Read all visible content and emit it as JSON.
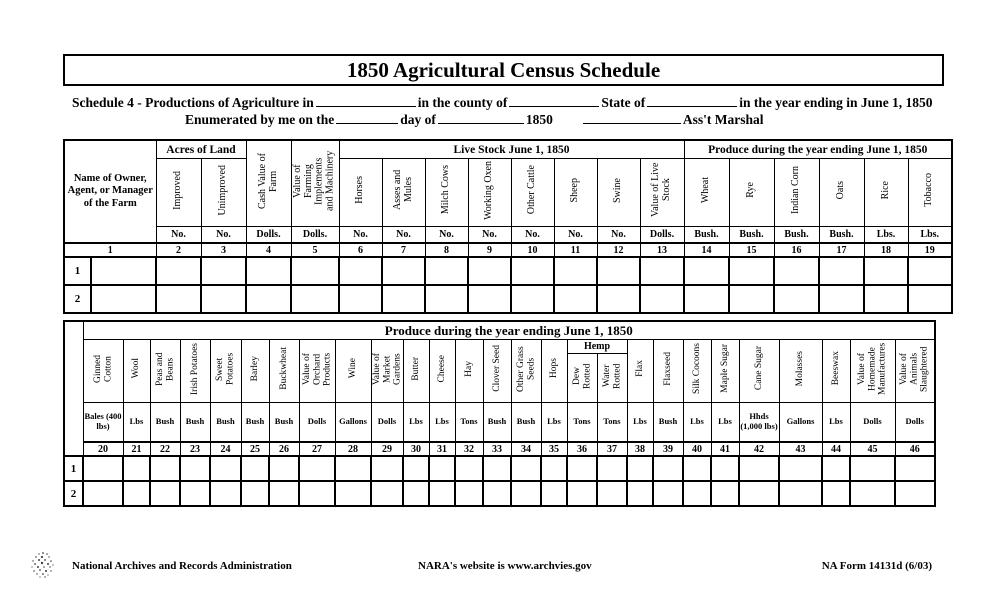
{
  "title": "1850 Agricultural Census Schedule",
  "header_lines": {
    "line1": [
      {
        "text": "Schedule 4 - Productions of Agriculture in"
      },
      {
        "blank": 100
      },
      {
        "text": "in the county of"
      },
      {
        "blank": 90
      },
      {
        "text": "State of"
      },
      {
        "blank": 90
      },
      {
        "text": "in the year ending in June 1, 1850"
      }
    ],
    "line2": [
      {
        "text": "Enumerated by me on the"
      },
      {
        "blank": 62
      },
      {
        "text": "day of"
      },
      {
        "blank": 86
      },
      {
        "text": "1850"
      },
      {
        "gap": 28
      },
      {
        "blank": 98
      },
      {
        "text": "Ass't Marshal"
      }
    ]
  },
  "table1": {
    "name_header": "Name of Owner, Agent, or Manager of the Farm",
    "name_colnum": "1",
    "groups": {
      "acres": "Acres of Land",
      "livestock": "Live Stock June 1, 1850",
      "produce": "Produce during the year ending June 1, 1850"
    },
    "columns": [
      {
        "label": "Improved",
        "unit": "No.",
        "num": "2",
        "group": "acres"
      },
      {
        "label": "Unimproved",
        "unit": "No.",
        "num": "3",
        "group": "acres"
      },
      {
        "label": "Cash Value of Farm",
        "unit": "Dolls.",
        "num": "4",
        "group": ""
      },
      {
        "label": "Value of Farming Implements and Machinery",
        "unit": "Dolls.",
        "num": "5",
        "group": ""
      },
      {
        "label": "Horses",
        "unit": "No.",
        "num": "6",
        "group": "livestock"
      },
      {
        "label": "Asses and Mules",
        "unit": "No.",
        "num": "7",
        "group": "livestock"
      },
      {
        "label": "Milch Cows",
        "unit": "No.",
        "num": "8",
        "group": "livestock"
      },
      {
        "label": "Working Oxen",
        "unit": "No.",
        "num": "9",
        "group": "livestock"
      },
      {
        "label": "Other Cattle",
        "unit": "No.",
        "num": "10",
        "group": "livestock"
      },
      {
        "label": "Sheep",
        "unit": "No.",
        "num": "11",
        "group": "livestock"
      },
      {
        "label": "Swine",
        "unit": "No.",
        "num": "12",
        "group": "livestock"
      },
      {
        "label": "Value of Live Stock",
        "unit": "Dolls.",
        "num": "13",
        "group": "livestock"
      },
      {
        "label": "Wheat",
        "unit": "Bush.",
        "num": "14",
        "group": "produce"
      },
      {
        "label": "Rye",
        "unit": "Bush.",
        "num": "15",
        "group": "produce"
      },
      {
        "label": "Indian Corn",
        "unit": "Bush.",
        "num": "16",
        "group": "produce"
      },
      {
        "label": "Oats",
        "unit": "Bush.",
        "num": "17",
        "group": "produce"
      },
      {
        "label": "Rice",
        "unit": "Lbs.",
        "num": "18",
        "group": "produce"
      },
      {
        "label": "Tobacco",
        "unit": "Lbs.",
        "num": "19",
        "group": "produce"
      }
    ],
    "rows": [
      "1",
      "2"
    ]
  },
  "table2": {
    "title": "Produce during the year ending June 1, 1850",
    "hemp_group": "Hemp",
    "columns": [
      {
        "label": "Ginned Cotton",
        "unit": "Bales (400 lbs)",
        "num": "20",
        "group": ""
      },
      {
        "label": "Wool",
        "unit": "Lbs",
        "num": "21",
        "group": ""
      },
      {
        "label": "Peas and Beans",
        "unit": "Bush",
        "num": "22",
        "group": ""
      },
      {
        "label": "Irish Potatoes",
        "unit": "Bush",
        "num": "23",
        "group": ""
      },
      {
        "label": "Sweet Potatoes",
        "unit": "Bush",
        "num": "24",
        "group": ""
      },
      {
        "label": "Barley",
        "unit": "Bush",
        "num": "25",
        "group": ""
      },
      {
        "label": "Buckwheat",
        "unit": "Bush",
        "num": "26",
        "group": ""
      },
      {
        "label": "Value of Orchard Products",
        "unit": "Dolls",
        "num": "27",
        "group": ""
      },
      {
        "label": "Wine",
        "unit": "Gallons",
        "num": "28",
        "group": ""
      },
      {
        "label": "Value of Market Gardens",
        "unit": "Dolls",
        "num": "29",
        "group": ""
      },
      {
        "label": "Butter",
        "unit": "Lbs",
        "num": "30",
        "group": ""
      },
      {
        "label": "Cheese",
        "unit": "Lbs",
        "num": "31",
        "group": ""
      },
      {
        "label": "Hay",
        "unit": "Tons",
        "num": "32",
        "group": ""
      },
      {
        "label": "Clover Seed",
        "unit": "Bush",
        "num": "33",
        "group": ""
      },
      {
        "label": "Other Grass Seeds",
        "unit": "Bush",
        "num": "34",
        "group": ""
      },
      {
        "label": "Hops",
        "unit": "Lbs",
        "num": "35",
        "group": ""
      },
      {
        "label": "Dew Rotted",
        "unit": "Tons",
        "num": "36",
        "group": "hemp"
      },
      {
        "label": "Water Rotted",
        "unit": "Tons",
        "num": "37",
        "group": "hemp"
      },
      {
        "label": "Flax",
        "unit": "Lbs",
        "num": "38",
        "group": ""
      },
      {
        "label": "Flaxseed",
        "unit": "Bush",
        "num": "39",
        "group": ""
      },
      {
        "label": "Silk Cocoons",
        "unit": "Lbs",
        "num": "40",
        "group": ""
      },
      {
        "label": "Maple Sugar",
        "unit": "Lbs",
        "num": "41",
        "group": ""
      },
      {
        "label": "Cane Sugar",
        "unit": "Hhds (1,000 lbs)",
        "num": "42",
        "group": ""
      },
      {
        "label": "Molasses",
        "unit": "Gallons",
        "num": "43",
        "group": ""
      },
      {
        "label": "Beeswax",
        "unit": "Lbs",
        "num": "44",
        "group": ""
      },
      {
        "label": "Value of Homemade Manufactures",
        "unit": "Dolls",
        "num": "45",
        "group": ""
      },
      {
        "label": "Value of Animals Slaughtered",
        "unit": "Dolls",
        "num": "46",
        "group": ""
      }
    ],
    "rows": [
      "1",
      "2"
    ]
  },
  "footer": {
    "org": "National Archives and Records Administration",
    "website": "NARA's website is www.archvies.gov",
    "form_number": "NA Form 14131d (6/03)"
  }
}
